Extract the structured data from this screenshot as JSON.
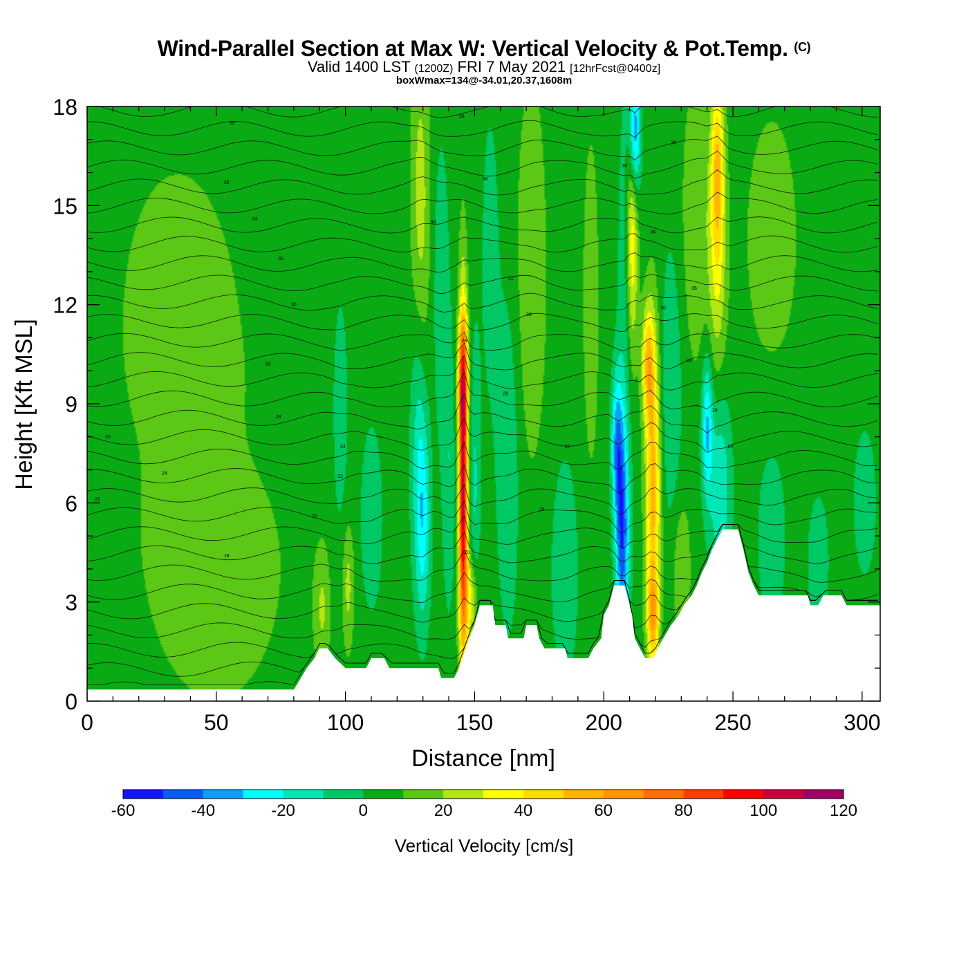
{
  "title": {
    "main": "Wind-Parallel Section at Max W: Vertical Velocity & Pot.Temp.",
    "copyright": "(C)",
    "valid_prefix": "Valid 1400 LST",
    "utc": "(1200Z)",
    "date": "FRI 7 May 2021",
    "forecast": "[12hrFcst@0400z]",
    "box_info": "boxWmax=134@-34.01,20.37,1608m"
  },
  "chart_data": {
    "type": "heatmap",
    "xlabel": "Distance [nm]",
    "ylabel": "Height [Kft MSL]",
    "xlim": [
      0,
      307
    ],
    "ylim": [
      0,
      18
    ],
    "x_ticks": [
      "0",
      "50",
      "100",
      "150",
      "200",
      "250",
      "300"
    ],
    "y_ticks": [
      "0",
      "3",
      "6",
      "9",
      "12",
      "15",
      "18"
    ],
    "x_tick_values": [
      0,
      50,
      100,
      150,
      200,
      250,
      300
    ],
    "y_tick_values": [
      0,
      3,
      6,
      9,
      12,
      15,
      18
    ],
    "colorbar": {
      "title": "Vertical Velocity [cm/s]",
      "labels": [
        "-60",
        "-40",
        "-20",
        "0",
        "20",
        "40",
        "60",
        "80",
        "100",
        "120"
      ],
      "label_values": [
        -60,
        -40,
        -20,
        0,
        20,
        40,
        60,
        80,
        100,
        120
      ],
      "bounds": [
        -60,
        -50,
        -40,
        -30,
        -20,
        -10,
        0,
        10,
        20,
        30,
        40,
        50,
        60,
        70,
        80,
        90,
        100,
        110,
        120
      ],
      "colors": [
        "#1414ff",
        "#0a5af5",
        "#0aa0f5",
        "#00ffff",
        "#00e6b4",
        "#00c864",
        "#0aaa14",
        "#5ac814",
        "#b4e614",
        "#ffff00",
        "#ffdc00",
        "#ffb400",
        "#ff9600",
        "#ff6e00",
        "#ff3c00",
        "#ff0000",
        "#c8003c",
        "#a00064"
      ]
    },
    "background_value": 5,
    "terrain": [
      [
        0,
        0.35
      ],
      [
        80,
        0.35
      ],
      [
        82,
        0.6
      ],
      [
        85,
        1.0
      ],
      [
        88,
        1.3
      ],
      [
        90,
        1.6
      ],
      [
        93,
        1.6
      ],
      [
        96,
        1.3
      ],
      [
        100,
        1.0
      ],
      [
        108,
        1.0
      ],
      [
        110,
        1.3
      ],
      [
        115,
        1.3
      ],
      [
        117,
        1.0
      ],
      [
        136,
        1.0
      ],
      [
        137,
        0.7
      ],
      [
        142,
        0.7
      ],
      [
        144,
        1.0
      ],
      [
        147,
        1.7
      ],
      [
        150,
        2.3
      ],
      [
        152,
        2.9
      ],
      [
        157,
        2.9
      ],
      [
        158,
        2.3
      ],
      [
        162,
        2.3
      ],
      [
        163,
        1.9
      ],
      [
        169,
        1.9
      ],
      [
        170,
        2.3
      ],
      [
        174,
        2.3
      ],
      [
        175,
        1.9
      ],
      [
        177,
        1.6
      ],
      [
        185,
        1.6
      ],
      [
        186,
        1.3
      ],
      [
        194,
        1.3
      ],
      [
        196,
        1.6
      ],
      [
        199,
        1.9
      ],
      [
        200,
        2.6
      ],
      [
        202,
        2.9
      ],
      [
        204,
        3.5
      ],
      [
        208,
        3.5
      ],
      [
        209,
        3.2
      ],
      [
        211,
        2.6
      ],
      [
        212,
        1.9
      ],
      [
        214,
        1.6
      ],
      [
        216,
        1.3
      ],
      [
        219,
        1.3
      ],
      [
        221,
        1.6
      ],
      [
        223,
        1.9
      ],
      [
        226,
        2.3
      ],
      [
        229,
        2.6
      ],
      [
        231,
        2.9
      ],
      [
        234,
        3.2
      ],
      [
        236,
        3.5
      ],
      [
        238,
        3.9
      ],
      [
        240,
        4.2
      ],
      [
        242,
        4.6
      ],
      [
        246,
        5.2
      ],
      [
        252,
        5.2
      ],
      [
        254,
        4.6
      ],
      [
        256,
        3.9
      ],
      [
        258,
        3.5
      ],
      [
        260,
        3.2
      ],
      [
        268,
        3.2
      ],
      [
        279,
        3.2
      ],
      [
        280,
        2.9
      ],
      [
        283,
        2.9
      ],
      [
        285,
        3.2
      ],
      [
        292,
        3.2
      ],
      [
        294,
        2.9
      ],
      [
        307,
        2.9
      ]
    ],
    "features": [
      {
        "x": 145.5,
        "y": 6.4,
        "sx": 1.2,
        "sy": 3.6,
        "w": 102
      },
      {
        "x": 145.5,
        "y": 9.8,
        "sx": 1.5,
        "sy": 1.2,
        "w": 38
      },
      {
        "x": 148.5,
        "y": 3.0,
        "sx": 1.8,
        "sy": 1.0,
        "w": 30
      },
      {
        "x": 150,
        "y": 6.5,
        "sx": 1.5,
        "sy": 3.0,
        "w": -16
      },
      {
        "x": 140,
        "y": 7.0,
        "sx": 1.8,
        "sy": 3.0,
        "w": -14
      },
      {
        "x": 130,
        "y": 5.5,
        "sx": 2.0,
        "sy": 2.2,
        "w": -28
      },
      {
        "x": 128,
        "y": 8.0,
        "sx": 2.2,
        "sy": 3.0,
        "w": -16
      },
      {
        "x": 110,
        "y": 5.5,
        "sx": 3.0,
        "sy": 2.0,
        "w": -14
      },
      {
        "x": 101,
        "y": 3.5,
        "sx": 1.5,
        "sy": 1.3,
        "w": 18
      },
      {
        "x": 91,
        "y": 2.8,
        "sx": 2.0,
        "sy": 1.2,
        "w": 15
      },
      {
        "x": 98,
        "y": 8.5,
        "sx": 2.5,
        "sy": 3.0,
        "w": -10
      },
      {
        "x": 129,
        "y": 15.0,
        "sx": 2.5,
        "sy": 3.5,
        "w": 20
      },
      {
        "x": 137,
        "y": 12.5,
        "sx": 2.0,
        "sy": 3.0,
        "w": -14
      },
      {
        "x": 163,
        "y": 7.0,
        "sx": 3.0,
        "sy": 3.5,
        "w": -14
      },
      {
        "x": 172,
        "y": 13.0,
        "sx": 4.0,
        "sy": 4.0,
        "w": 14
      },
      {
        "x": 156,
        "y": 13.5,
        "sx": 3.0,
        "sy": 4.0,
        "w": -8
      },
      {
        "x": 185,
        "y": 4.0,
        "sx": 4.0,
        "sy": 2.5,
        "w": -12
      },
      {
        "x": 207,
        "y": 5.0,
        "sx": 1.8,
        "sy": 2.2,
        "w": -48
      },
      {
        "x": 205,
        "y": 7.8,
        "sx": 1.5,
        "sy": 1.5,
        "w": -36
      },
      {
        "x": 212,
        "y": 17.2,
        "sx": 1.5,
        "sy": 1.3,
        "w": -48
      },
      {
        "x": 208,
        "y": 10.5,
        "sx": 2.0,
        "sy": 6.0,
        "w": -12
      },
      {
        "x": 219,
        "y": 6.5,
        "sx": 2.0,
        "sy": 3.2,
        "w": 50
      },
      {
        "x": 217,
        "y": 10.2,
        "sx": 1.6,
        "sy": 1.2,
        "w": 40
      },
      {
        "x": 219,
        "y": 2.5,
        "sx": 1.5,
        "sy": 1.0,
        "w": 38
      },
      {
        "x": 211,
        "y": 14.0,
        "sx": 1.5,
        "sy": 2.5,
        "w": 34
      },
      {
        "x": 226,
        "y": 9.5,
        "sx": 3.0,
        "sy": 3.0,
        "w": -14
      },
      {
        "x": 240,
        "y": 8.3,
        "sx": 1.5,
        "sy": 1.5,
        "w": -35
      },
      {
        "x": 245,
        "y": 6.5,
        "sx": 3.0,
        "sy": 2.0,
        "w": -24
      },
      {
        "x": 244,
        "y": 16.2,
        "sx": 1.8,
        "sy": 2.0,
        "w": 40
      },
      {
        "x": 244,
        "y": 13.0,
        "sx": 2.5,
        "sy": 2.5,
        "w": 20
      },
      {
        "x": 236,
        "y": 14.5,
        "sx": 4.0,
        "sy": 3.0,
        "w": 14
      },
      {
        "x": 265,
        "y": 5.0,
        "sx": 4.0,
        "sy": 2.0,
        "w": -12
      },
      {
        "x": 283,
        "y": 4.2,
        "sx": 3.0,
        "sy": 1.5,
        "w": -12
      },
      {
        "x": 301,
        "y": 6.0,
        "sx": 3.0,
        "sy": 1.5,
        "w": -14
      },
      {
        "x": 265,
        "y": 14.0,
        "sx": 8.0,
        "sy": 3.0,
        "w": 10
      },
      {
        "x": 230,
        "y": 4.0,
        "sx": 2.5,
        "sy": 1.5,
        "w": 14
      },
      {
        "x": 195,
        "y": 12.0,
        "sx": 3.0,
        "sy": 5.0,
        "w": 8
      },
      {
        "x": 50,
        "y": 4.0,
        "sx": 25.0,
        "sy": 4.0,
        "w": 8
      },
      {
        "x": 35,
        "y": 12.0,
        "sx": 20.0,
        "sy": 4.0,
        "w": 8
      },
      {
        "x": 45,
        "y": 7.5,
        "sx": 20.0,
        "sy": 1.5,
        "w": -2
      }
    ],
    "theta_contours": {
      "levels": [
        18,
        19,
        20,
        21,
        22,
        23,
        24,
        25,
        26,
        27,
        28,
        29,
        30,
        31,
        32,
        33,
        34,
        35,
        36,
        37,
        38,
        39,
        40,
        41,
        42,
        43,
        44,
        45,
        46,
        47,
        48
      ],
      "labels": [
        {
          "text": "18",
          "x": 54,
          "y": 4.4
        },
        {
          "text": "20",
          "x": 88,
          "y": 5.6
        },
        {
          "text": "22",
          "x": 4,
          "y": 6.1
        },
        {
          "text": "24",
          "x": 30,
          "y": 6.9
        },
        {
          "text": "26",
          "x": 8,
          "y": 8.0
        },
        {
          "text": "28",
          "x": 74,
          "y": 8.6
        },
        {
          "text": "28",
          "x": 70,
          "y": 10.2
        },
        {
          "text": "30",
          "x": 80,
          "y": 12.0
        },
        {
          "text": "32",
          "x": 75,
          "y": 13.4
        },
        {
          "text": "34",
          "x": 65,
          "y": 14.6
        },
        {
          "text": "36",
          "x": 54,
          "y": 15.7
        },
        {
          "text": "36",
          "x": 56,
          "y": 17.5
        },
        {
          "text": "36",
          "x": 145,
          "y": 17.7
        },
        {
          "text": "34",
          "x": 154,
          "y": 15.8
        },
        {
          "text": "34",
          "x": 134,
          "y": 14.5
        },
        {
          "text": "32",
          "x": 164,
          "y": 12.8
        },
        {
          "text": "30",
          "x": 171,
          "y": 11.7
        },
        {
          "text": "28",
          "x": 146,
          "y": 10.9
        },
        {
          "text": "26",
          "x": 162,
          "y": 9.3
        },
        {
          "text": "24",
          "x": 99,
          "y": 7.7
        },
        {
          "text": "22",
          "x": 98,
          "y": 6.8
        },
        {
          "text": "27",
          "x": 186,
          "y": 7.7
        },
        {
          "text": "25",
          "x": 176,
          "y": 5.8
        },
        {
          "text": "20",
          "x": 147,
          "y": 4.5
        },
        {
          "text": "38",
          "x": 208,
          "y": 16.2
        },
        {
          "text": "38",
          "x": 227,
          "y": 16.9
        },
        {
          "text": "34",
          "x": 219,
          "y": 14.2
        },
        {
          "text": "36",
          "x": 235,
          "y": 12.5
        },
        {
          "text": "30",
          "x": 223,
          "y": 11.9
        },
        {
          "text": "28",
          "x": 233,
          "y": 10.3
        },
        {
          "text": "26",
          "x": 243,
          "y": 8.8
        },
        {
          "text": "24",
          "x": 249,
          "y": 7.7
        }
      ]
    }
  }
}
